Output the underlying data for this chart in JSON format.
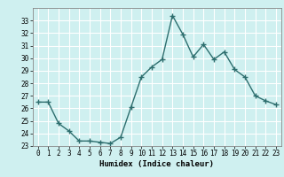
{
  "x": [
    0,
    1,
    2,
    3,
    4,
    5,
    6,
    7,
    8,
    9,
    10,
    11,
    12,
    13,
    14,
    15,
    16,
    17,
    18,
    19,
    20,
    21,
    22,
    23
  ],
  "y": [
    26.5,
    26.5,
    24.8,
    24.2,
    23.4,
    23.4,
    23.3,
    23.2,
    23.7,
    26.1,
    28.5,
    29.3,
    29.9,
    33.4,
    31.9,
    30.1,
    31.1,
    29.9,
    30.5,
    29.1,
    28.5,
    27.0,
    26.6,
    26.3
  ],
  "line_color": "#2d6e6e",
  "marker": "+",
  "markersize": 4,
  "linewidth": 1.0,
  "bg_color": "#cff0f0",
  "grid_color": "#ffffff",
  "xlabel": "Humidex (Indice chaleur)",
  "xlim": [
    -0.5,
    23.5
  ],
  "ylim": [
    23,
    34
  ],
  "yticks": [
    23,
    24,
    25,
    26,
    27,
    28,
    29,
    30,
    31,
    32,
    33
  ],
  "xticks": [
    0,
    1,
    2,
    3,
    4,
    5,
    6,
    7,
    8,
    9,
    10,
    11,
    12,
    13,
    14,
    15,
    16,
    17,
    18,
    19,
    20,
    21,
    22,
    23
  ],
  "tick_fontsize": 5.5,
  "xlabel_fontsize": 6.5
}
